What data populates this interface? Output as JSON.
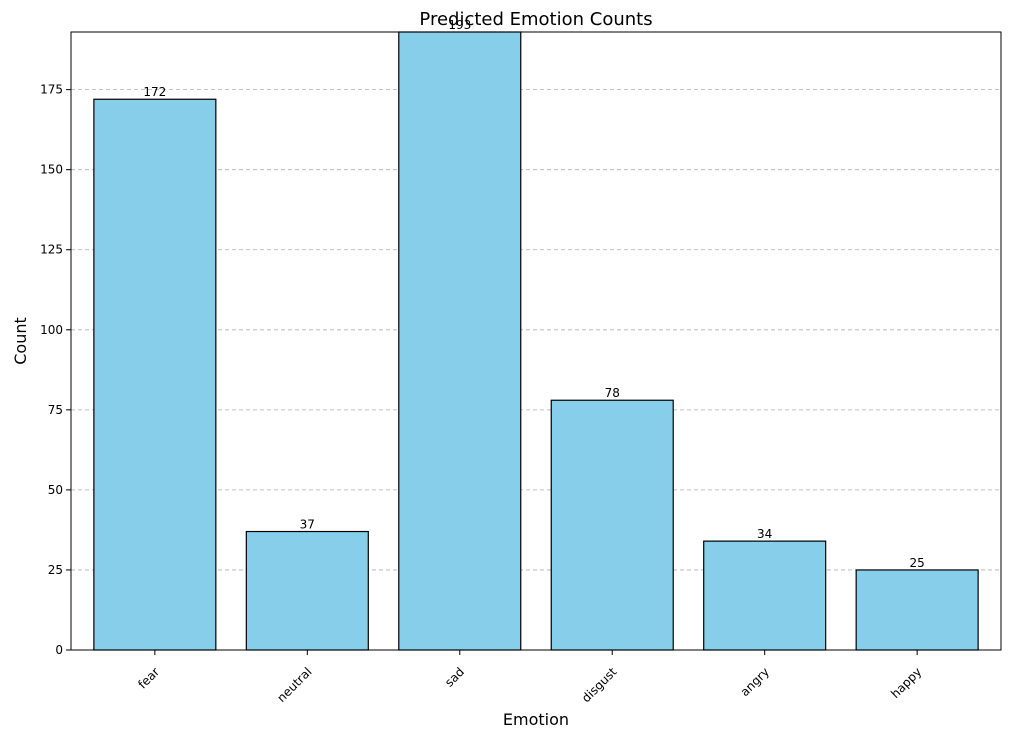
{
  "chart_data": {
    "type": "bar",
    "title": "Predicted Emotion Counts",
    "xlabel": "Emotion",
    "ylabel": "Count",
    "categories": [
      "fear",
      "neutral",
      "sad",
      "disgust",
      "angry",
      "happy"
    ],
    "values": [
      172,
      37,
      193,
      78,
      34,
      25
    ],
    "ylim": [
      0,
      193
    ],
    "yticks": [
      0,
      25,
      50,
      75,
      100,
      125,
      150,
      175
    ],
    "grid": "y-dashed",
    "bar_color": "#87CEEB",
    "edge_color": "#000000",
    "xtick_rotation": 45
  }
}
